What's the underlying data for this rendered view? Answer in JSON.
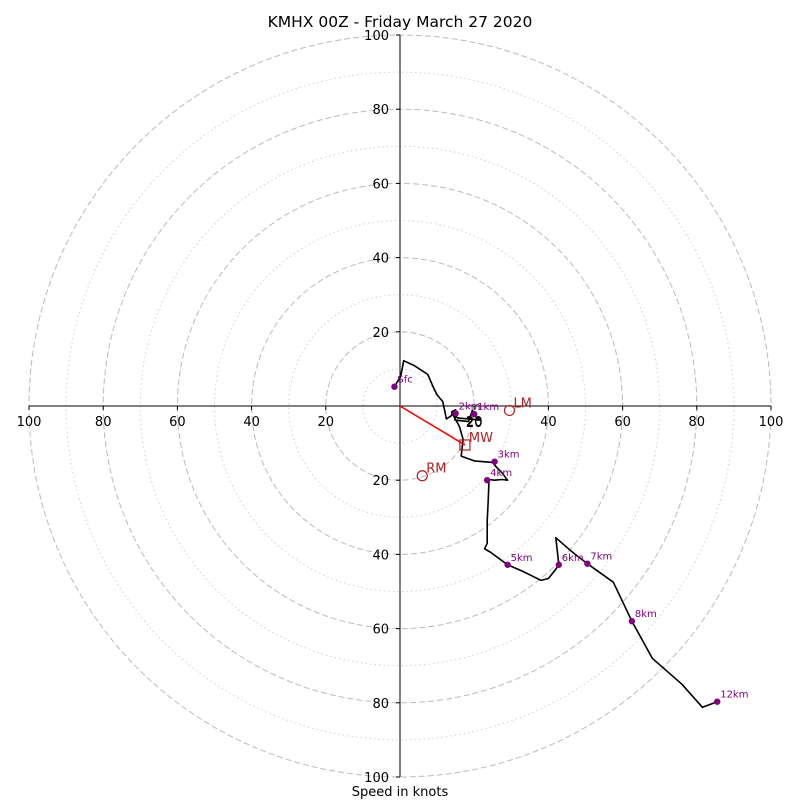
{
  "chart_data": {
    "type": "hodograph",
    "title": "KMHX 00Z - Friday March 27 2020",
    "xlabel": "Speed in knots",
    "units": "knots",
    "xlim": [
      -100,
      100
    ],
    "ylim": [
      -100,
      100
    ],
    "rings_dashed": [
      20,
      40,
      60,
      80,
      100
    ],
    "rings_dotted": [
      10,
      30,
      50,
      70,
      90
    ],
    "ticks": {
      "x": [
        "100",
        "80",
        "60",
        "40",
        "20",
        "20",
        "40",
        "60",
        "80",
        "100"
      ],
      "y": [
        "100",
        "80",
        "60",
        "40",
        "20",
        "20",
        "40",
        "60",
        "80",
        "100"
      ],
      "origin": "20"
    },
    "colors": {
      "trace": "#000000",
      "height_points": "#800080",
      "motion": "#b22222",
      "mean_wind_vector": "#ff0000",
      "rings": "#bbbbbb"
    },
    "trace": [
      [
        -1.5,
        5.2
      ],
      [
        0.2,
        8.0
      ],
      [
        1,
        12.2
      ],
      [
        4,
        10.8
      ],
      [
        7.5,
        8.5
      ],
      [
        9,
        5
      ],
      [
        10,
        3
      ],
      [
        11.5,
        1.2
      ],
      [
        12,
        -1
      ],
      [
        12.5,
        -3.5
      ],
      [
        14,
        -2.5
      ],
      [
        14,
        -1.5
      ],
      [
        15,
        -1
      ],
      [
        15,
        -2
      ],
      [
        14.8,
        -3.8
      ],
      [
        18.5,
        -4.2
      ],
      [
        19.5,
        -1.2
      ],
      [
        20.5,
        -3
      ],
      [
        21.5,
        -3.8
      ],
      [
        15.5,
        -3.2
      ],
      [
        14.2,
        -1.8
      ],
      [
        14.6,
        -3
      ],
      [
        16,
        -5.5
      ],
      [
        17,
        -9
      ],
      [
        16.5,
        -13.5
      ],
      [
        20,
        -14.8
      ],
      [
        25,
        -15.2
      ],
      [
        26,
        -16.5
      ],
      [
        27.5,
        -18
      ],
      [
        29,
        -20
      ],
      [
        27.5,
        -19.8
      ],
      [
        25.5,
        -20
      ],
      [
        24,
        -19.8
      ],
      [
        23.8,
        -25
      ],
      [
        23.5,
        -31
      ],
      [
        23.5,
        -37
      ],
      [
        22.8,
        -38.5
      ],
      [
        24.5,
        -39.5
      ],
      [
        29,
        -42.8
      ],
      [
        33,
        -44.5
      ],
      [
        36,
        -46
      ],
      [
        38,
        -47
      ],
      [
        40,
        -46.5
      ],
      [
        42,
        -44
      ],
      [
        42.8,
        -42.8
      ],
      [
        42.5,
        -40
      ],
      [
        42,
        -35.5
      ],
      [
        46,
        -39
      ],
      [
        50.5,
        -42.5
      ],
      [
        57.5,
        -47.5
      ],
      [
        62.5,
        -58
      ],
      [
        68,
        -68
      ],
      [
        76,
        -75
      ],
      [
        81.5,
        -81.2
      ],
      [
        84,
        -80.3
      ],
      [
        85.5,
        -79.7
      ]
    ],
    "height_points": [
      {
        "label": "Sfc",
        "u": -1.5,
        "v": 5.2
      },
      {
        "label": "1km",
        "u": 20,
        "v": -2.2
      },
      {
        "label": "2km",
        "u": 15,
        "v": -2
      },
      {
        "label": "3km",
        "u": 25.5,
        "v": -15
      },
      {
        "label": "4km",
        "u": 23.5,
        "v": -20
      },
      {
        "label": "5km",
        "u": 29,
        "v": -42.8
      },
      {
        "label": "6km",
        "u": 42.8,
        "v": -42.8
      },
      {
        "label": "7km",
        "u": 50.5,
        "v": -42.5
      },
      {
        "label": "8km",
        "u": 62.5,
        "v": -58
      },
      {
        "label": "12km",
        "u": 85.5,
        "v": -79.7
      }
    ],
    "storm_motion": [
      {
        "label": "LM",
        "u": 29.5,
        "v": -1.2
      },
      {
        "label": "MW",
        "u": 17.5,
        "v": -10.5
      },
      {
        "label": "RM",
        "u": 6,
        "v": -18.8
      }
    ],
    "mean_wind_vector": {
      "from": [
        0,
        0
      ],
      "to": [
        17.5,
        -10.5
      ]
    }
  }
}
